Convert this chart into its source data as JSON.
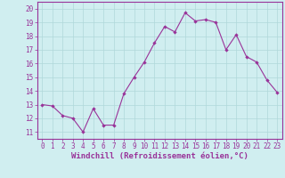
{
  "x": [
    0,
    1,
    2,
    3,
    4,
    5,
    6,
    7,
    8,
    9,
    10,
    11,
    12,
    13,
    14,
    15,
    16,
    17,
    18,
    19,
    20,
    21,
    22,
    23
  ],
  "y": [
    13.0,
    12.9,
    12.2,
    12.0,
    11.0,
    12.7,
    11.5,
    11.5,
    13.8,
    15.0,
    16.1,
    17.5,
    18.7,
    18.3,
    19.7,
    19.1,
    19.2,
    19.0,
    17.0,
    18.1,
    16.5,
    16.1,
    14.8,
    13.9
  ],
  "line_color": "#993399",
  "marker": "D",
  "marker_size": 2.2,
  "bg_color": "#d0eef0",
  "grid_color": "#b0d8da",
  "ylabel_ticks": [
    11,
    12,
    13,
    14,
    15,
    16,
    17,
    18,
    19,
    20
  ],
  "xlabel_ticks": [
    0,
    1,
    2,
    3,
    4,
    5,
    6,
    7,
    8,
    9,
    10,
    11,
    12,
    13,
    14,
    15,
    16,
    17,
    18,
    19,
    20,
    21,
    22,
    23
  ],
  "xlabel": "Windchill (Refroidissement éolien,°C)",
  "xlim": [
    -0.5,
    23.5
  ],
  "ylim": [
    10.5,
    20.5
  ],
  "tick_fontsize": 5.5,
  "xlabel_fontsize": 6.5
}
